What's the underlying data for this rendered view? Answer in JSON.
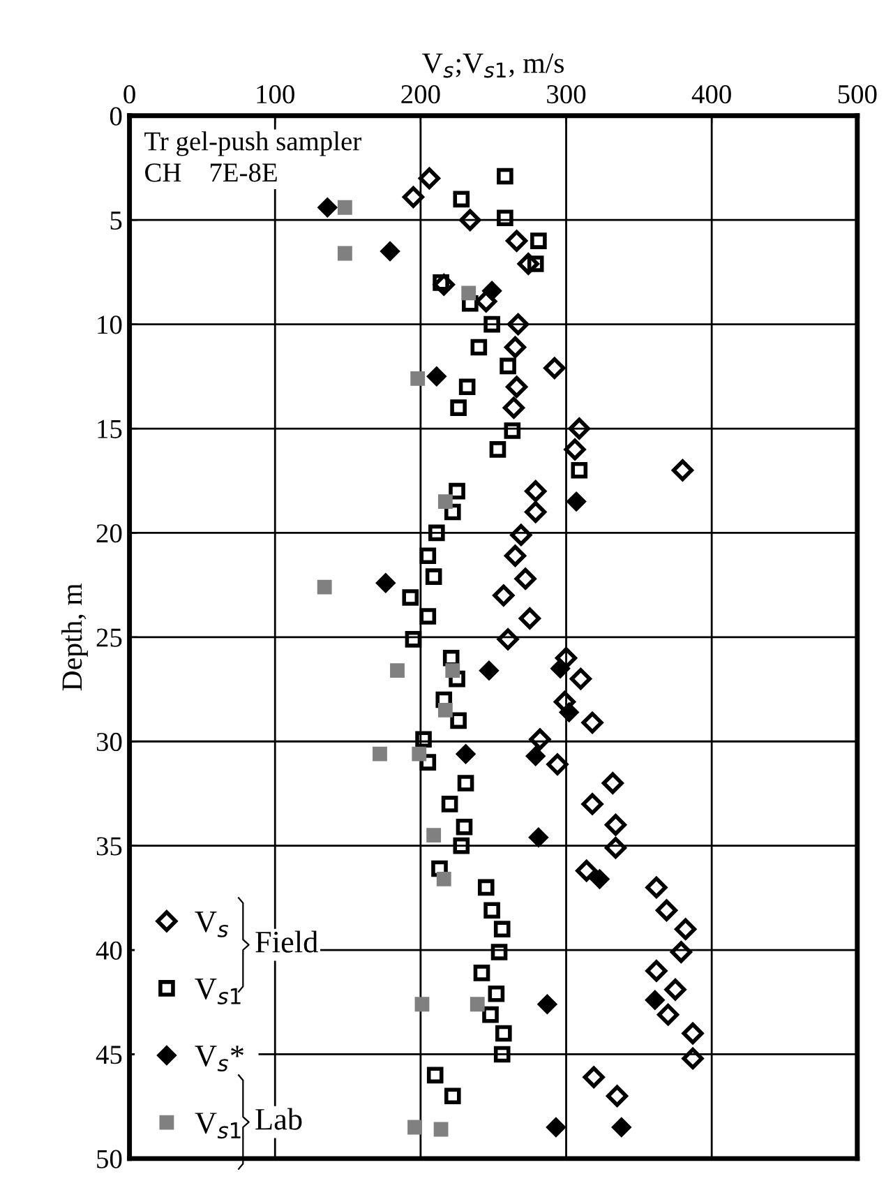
{
  "chart_data": {
    "type": "scatter",
    "xlabel": "V$_{s}$;V$_{s1}$, m/s",
    "ylabel": "Depth, m",
    "annotations": [
      "Tr gel-push sampler\nCH    7E-8E",
      "Field",
      "Lab"
    ],
    "xlim": [
      0,
      500
    ],
    "xticks": [
      0,
      100,
      200,
      300,
      400,
      500
    ],
    "ylim": [
      50,
      0
    ],
    "yticks": [
      0,
      5,
      10,
      15,
      20,
      25,
      30,
      35,
      40,
      45,
      50
    ],
    "grid": true,
    "legend": "bottom left",
    "series": [
      {
        "name": "V$_{s}$",
        "color": "#000000",
        "marker": "diamond",
        "x": [
          206,
          195,
          234,
          266,
          274,
          216,
          245,
          267,
          265,
          292,
          266,
          264,
          309,
          306,
          380,
          279,
          279,
          269,
          265,
          272,
          257,
          275,
          260,
          300,
          310,
          299,
          318,
          282,
          294,
          332,
          318,
          334,
          334,
          314,
          362,
          369,
          382,
          379,
          362,
          375,
          370,
          387,
          387,
          319,
          335
        ],
        "values": [
          3.0,
          3.9,
          5.0,
          6.0,
          7.1,
          8.1,
          8.9,
          10.0,
          11.1,
          12.1,
          13.0,
          14.0,
          15.0,
          16.0,
          17.0,
          18.0,
          19.0,
          20.1,
          21.1,
          22.2,
          23.0,
          24.1,
          25.1,
          26.0,
          27.0,
          28.1,
          29.1,
          29.9,
          31.1,
          32.0,
          33.0,
          34.0,
          35.1,
          36.2,
          37.0,
          38.1,
          39.0,
          40.1,
          41.0,
          41.9,
          43.1,
          44.0,
          45.2,
          46.1,
          47.0
        ]
      },
      {
        "name": "V$_{s1}$",
        "color": "#000000",
        "marker": "square",
        "x": [
          258,
          228,
          258,
          281,
          279,
          214,
          234,
          249,
          240,
          260,
          232,
          226,
          263,
          253,
          309,
          225,
          222,
          211,
          205,
          209,
          193,
          205,
          195,
          221,
          225,
          216,
          226,
          202,
          205,
          231,
          220,
          230,
          228,
          213,
          245,
          249,
          256,
          254,
          242,
          252,
          248,
          257,
          256,
          210,
          222
        ],
        "values": [
          2.9,
          4.0,
          4.9,
          6.0,
          7.1,
          8.0,
          9.0,
          10.0,
          11.1,
          12.0,
          13.0,
          14.0,
          15.1,
          16.0,
          17.0,
          18.0,
          19.0,
          20.0,
          21.1,
          22.1,
          23.1,
          24.0,
          25.1,
          26.0,
          27.0,
          28.0,
          29.0,
          29.9,
          31.0,
          32.0,
          33.0,
          34.1,
          35.0,
          36.1,
          37.0,
          38.1,
          39.0,
          40.1,
          41.1,
          42.1,
          43.1,
          44.0,
          45.0,
          46.0,
          47.0
        ]
      },
      {
        "name": "V$_{s}$*",
        "color": "#000000",
        "marker": "diamond",
        "x": [
          136,
          179,
          249,
          211,
          307,
          176,
          247,
          296,
          302,
          231,
          279,
          281,
          323,
          287,
          361,
          293,
          338
        ],
        "values": [
          4.4,
          6.5,
          8.4,
          12.5,
          18.5,
          22.4,
          26.6,
          26.5,
          28.6,
          30.6,
          30.7,
          34.6,
          36.6,
          42.6,
          42.4,
          48.5,
          48.5
        ]
      },
      {
        "name": "V$_{s1}$",
        "color": "#808080",
        "marker": "square",
        "x": [
          148,
          148,
          233,
          198,
          217,
          134,
          184,
          222,
          217,
          172,
          199,
          209,
          216,
          201,
          239,
          196,
          214
        ],
        "values": [
          4.4,
          6.6,
          8.5,
          12.6,
          18.5,
          22.6,
          26.6,
          26.6,
          28.5,
          30.6,
          30.6,
          34.5,
          36.6,
          42.6,
          42.6,
          48.5,
          48.6
        ]
      }
    ]
  }
}
